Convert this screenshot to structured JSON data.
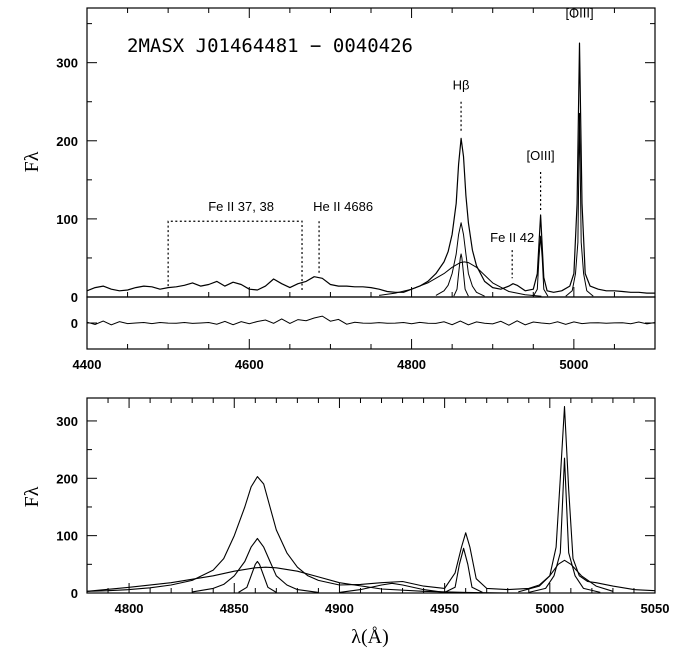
{
  "chart_data": [
    {
      "type": "line",
      "panel": "top",
      "title": "2MASX J01464481 − 0040426",
      "xlabel": "",
      "ylabel": "Fλ",
      "xlim": [
        4400,
        5100
      ],
      "ylim": [
        0,
        370
      ],
      "xticks": [
        4400,
        4600,
        4800,
        5000
      ],
      "yticks": [
        0,
        100,
        200,
        300
      ],
      "x_tick_labels": [
        "4400",
        "4600",
        "4800",
        "5000"
      ],
      "y_tick_labels": [
        "0",
        "100",
        "200",
        "300"
      ],
      "residual_ylim": [
        -30,
        30
      ],
      "residual_yticks": [
        0
      ],
      "residual_y_tick_labels": [
        "0"
      ],
      "annotations": [
        {
          "label": "Fe II 37, 38",
          "x": [
            4500,
            4665
          ],
          "y_line": 97
        },
        {
          "label": "He II 4686",
          "x": 4686,
          "y_line": 97
        },
        {
          "label": "Hβ",
          "x": 4861,
          "y_line": 250
        },
        {
          "label": "Fe II 42",
          "x": 4924,
          "y_line": 60
        },
        {
          "label": "[OIII]",
          "x": 4959,
          "y_line": 160
        },
        {
          "label": "[OIII]",
          "x": 5007,
          "y_line": 350
        }
      ],
      "series": [
        {
          "values_desc": "observed",
          "x": [
            4400,
            4410,
            4420,
            4430,
            4440,
            4450,
            4460,
            4470,
            4480,
            4490,
            4500,
            4510,
            4520,
            4530,
            4540,
            4550,
            4560,
            4570,
            4580,
            4590,
            4600,
            4610,
            4620,
            4630,
            4640,
            4650,
            4660,
            4670,
            4680,
            4690,
            4700,
            4710,
            4720,
            4730,
            4740,
            4750,
            4760,
            4770,
            4780,
            4790,
            4800,
            4810,
            4820,
            4830,
            4840,
            4845,
            4850,
            4855,
            4858,
            4861,
            4864,
            4867,
            4870,
            4875,
            4880,
            4890,
            4900,
            4910,
            4920,
            4925,
            4930,
            4940,
            4950,
            4955,
            4959,
            4963,
            4967,
            4975,
            4985,
            4995,
            5000,
            5004,
            5007,
            5010,
            5014,
            5020,
            5030,
            5040,
            5050,
            5060,
            5070,
            5080,
            5090,
            5100
          ],
          "values": [
            8,
            12,
            14,
            10,
            8,
            9,
            12,
            14,
            13,
            10,
            12,
            13,
            15,
            18,
            14,
            16,
            20,
            14,
            19,
            16,
            10,
            9,
            14,
            23,
            17,
            12,
            17,
            20,
            26,
            24,
            16,
            14,
            14,
            13,
            13,
            12,
            10,
            7,
            6,
            6,
            10,
            14,
            20,
            30,
            45,
            58,
            80,
            120,
            170,
            203,
            180,
            130,
            95,
            60,
            40,
            20,
            12,
            10,
            14,
            17,
            15,
            8,
            10,
            30,
            105,
            25,
            8,
            6,
            8,
            14,
            30,
            120,
            325,
            120,
            30,
            14,
            10,
            8,
            8,
            7,
            6,
            6,
            5,
            5
          ]
        },
        {
          "values_desc": "broad Hβ component",
          "x": [
            4760,
            4780,
            4800,
            4820,
            4840,
            4850,
            4860,
            4865,
            4870,
            4880,
            4890,
            4900,
            4920,
            4940,
            4960
          ],
          "values": [
            2,
            5,
            10,
            18,
            30,
            38,
            44,
            45,
            44,
            38,
            28,
            18,
            7,
            3,
            1
          ]
        },
        {
          "values_desc": "intermediate Hβ component",
          "x": [
            4830,
            4840,
            4845,
            4850,
            4855,
            4858,
            4861,
            4864,
            4867,
            4870,
            4875,
            4880,
            4890
          ],
          "values": [
            2,
            8,
            15,
            30,
            55,
            80,
            95,
            80,
            55,
            30,
            14,
            6,
            1
          ]
        },
        {
          "values_desc": "narrow Hβ component",
          "x": [
            4852,
            4856,
            4858,
            4860,
            4861,
            4862,
            4864,
            4866,
            4870
          ],
          "values": [
            1,
            10,
            30,
            50,
            55,
            50,
            30,
            10,
            1
          ]
        },
        {
          "values_desc": "[OIII] 5007 component",
          "x": [
            4990,
            4998,
            5002,
            5005,
            5007,
            5009,
            5012,
            5016,
            5024
          ],
          "values": [
            1,
            8,
            30,
            70,
            235,
            70,
            30,
            8,
            1
          ]
        },
        {
          "values_desc": "[OIII] 4959 component",
          "x": [
            4950,
            4955,
            4957,
            4959,
            4961,
            4963,
            4968
          ],
          "values": [
            1,
            10,
            50,
            78,
            50,
            10,
            1
          ]
        }
      ]
    },
    {
      "type": "line",
      "panel": "bottom",
      "xlabel": "λ(Å)",
      "ylabel": "Fλ",
      "xlim": [
        4780,
        5050
      ],
      "ylim": [
        0,
        340
      ],
      "xticks": [
        4800,
        4850,
        4900,
        4950,
        5000,
        5050
      ],
      "yticks": [
        0,
        100,
        200,
        300
      ],
      "x_tick_labels": [
        "4800",
        "4850",
        "4900",
        "4950",
        "5000",
        "5050"
      ],
      "y_tick_labels": [
        "0",
        "100",
        "200",
        "300"
      ],
      "series": [
        {
          "values_desc": "model total",
          "x": [
            4780,
            4790,
            4800,
            4810,
            4820,
            4830,
            4840,
            4845,
            4850,
            4855,
            4858,
            4861,
            4864,
            4867,
            4870,
            4875,
            4880,
            4885,
            4890,
            4900,
            4910,
            4920,
            4930,
            4940,
            4950,
            4955,
            4958,
            4960,
            4962,
            4965,
            4970,
            4980,
            4990,
            4995,
            5000,
            5003,
            5005,
            5007,
            5009,
            5011,
            5014,
            5018,
            5022,
            5030,
            5040,
            5050
          ],
          "values": [
            3,
            4,
            6,
            9,
            14,
            22,
            40,
            60,
            100,
            150,
            185,
            203,
            190,
            150,
            110,
            70,
            45,
            30,
            22,
            14,
            15,
            18,
            20,
            12,
            8,
            35,
            80,
            105,
            80,
            25,
            8,
            6,
            8,
            14,
            30,
            80,
            200,
            325,
            180,
            60,
            30,
            20,
            18,
            12,
            6,
            4
          ]
        },
        {
          "values_desc": "broad Hβ component",
          "x": [
            4780,
            4800,
            4820,
            4840,
            4850,
            4860,
            4865,
            4870,
            4880,
            4890,
            4900,
            4920,
            4940,
            4960,
            4980
          ],
          "values": [
            3,
            10,
            18,
            30,
            38,
            44,
            45,
            44,
            38,
            28,
            18,
            7,
            3,
            1,
            0
          ]
        },
        {
          "values_desc": "intermediate Hβ component",
          "x": [
            4830,
            4840,
            4845,
            4850,
            4855,
            4858,
            4861,
            4864,
            4867,
            4870,
            4875,
            4880,
            4890
          ],
          "values": [
            2,
            8,
            15,
            30,
            55,
            80,
            95,
            80,
            55,
            30,
            14,
            6,
            1
          ]
        },
        {
          "values_desc": "narrow Hβ component",
          "x": [
            4852,
            4856,
            4858,
            4860,
            4861,
            4862,
            4864,
            4866,
            4870
          ],
          "values": [
            1,
            10,
            30,
            50,
            55,
            50,
            30,
            10,
            1
          ]
        },
        {
          "values_desc": "[OIII] 5007 narrow component",
          "x": [
            4990,
            4998,
            5002,
            5005,
            5007,
            5009,
            5012,
            5016,
            5024
          ],
          "values": [
            1,
            8,
            30,
            70,
            235,
            70,
            30,
            8,
            1
          ]
        },
        {
          "values_desc": "[OIII] 5007 broad component",
          "x": [
            4985,
            4995,
            5000,
            5004,
            5007,
            5010,
            5015,
            5022,
            5030
          ],
          "values": [
            2,
            12,
            30,
            50,
            57,
            50,
            30,
            12,
            3
          ]
        },
        {
          "values_desc": "[OIII] 4959 component",
          "x": [
            4950,
            4955,
            4957,
            4959,
            4961,
            4963,
            4968
          ],
          "values": [
            1,
            10,
            50,
            78,
            50,
            10,
            1
          ]
        },
        {
          "values_desc": "Fe II 42 component",
          "x": [
            4900,
            4910,
            4920,
            4925,
            4930,
            4940,
            4950
          ],
          "values": [
            1,
            6,
            14,
            17,
            14,
            6,
            1
          ]
        }
      ]
    }
  ]
}
